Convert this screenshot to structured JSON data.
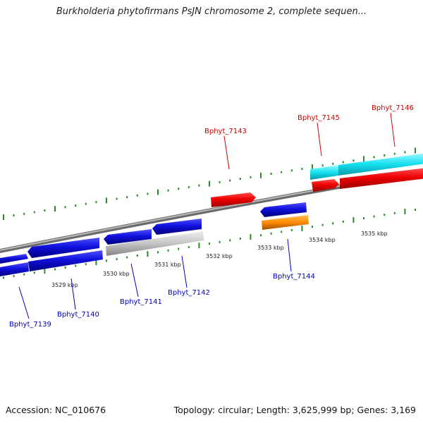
{
  "title": "Burkholderia phytofirmans PsJN chromosome 2, complete sequen...",
  "footer": {
    "accession": "Accession: NC_010676",
    "topology": "Topology: circular; Length: 3,625,999 bp; Genes: 3,169"
  },
  "colors": {
    "forward_gene": "#e8000a",
    "reverse_gene": "#1010dd",
    "cyan_feature": "#14e0f0",
    "orange_feature": "#ff8c00",
    "gray_feature": "#c4c4c4",
    "tick": "#2a8a2a",
    "backbone": "#888888",
    "forward_label": "#cc0000",
    "reverse_label": "#0000bb"
  },
  "scale_labels": [
    {
      "text": "3529 kbp"
    },
    {
      "text": "3530 kbp"
    },
    {
      "text": "3531 kbp"
    },
    {
      "text": "3532 kbp"
    },
    {
      "text": "3533 kbp"
    },
    {
      "text": "3534 kbp"
    },
    {
      "text": "3535 kbp"
    }
  ],
  "gene_labels": [
    {
      "text": "Bphyt_7143",
      "strand": "forward"
    },
    {
      "text": "Bphyt_7145",
      "strand": "forward"
    },
    {
      "text": "Bphyt_7146",
      "strand": "forward"
    },
    {
      "text": "Bphyt_7139",
      "strand": "reverse"
    },
    {
      "text": "Bphyt_7140",
      "strand": "reverse"
    },
    {
      "text": "Bphyt_7141",
      "strand": "reverse"
    },
    {
      "text": "Bphyt_7142",
      "strand": "reverse"
    },
    {
      "text": "Bphyt_7144",
      "strand": "reverse"
    }
  ]
}
